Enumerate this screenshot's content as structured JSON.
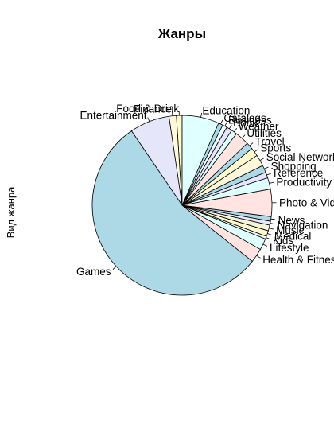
{
  "chart_data": {
    "type": "pie",
    "title": "Жанры",
    "ylabel": "Вид жанра",
    "xlabel": "",
    "start_angle_deg": 90,
    "direction": "counterclockwise",
    "slices": [
      {
        "label": "Food & Drink",
        "value": 1.0,
        "color": "#fffacd"
      },
      {
        "label": "Finance",
        "value": 1.3,
        "color": "#fff8dc"
      },
      {
        "label": "Entertainment",
        "value": 7.0,
        "color": "#e6e6fa"
      },
      {
        "label": "Games",
        "value": 53.5,
        "color": "#add8e6"
      },
      {
        "label": "Health & Fitness",
        "value": 2.5,
        "color": "#ffe4e1"
      },
      {
        "label": "Lifestyle",
        "value": 2.0,
        "color": "#e0ffff"
      },
      {
        "label": "Kids",
        "value": 0.5,
        "color": "#f0f8ff"
      },
      {
        "label": "Medical",
        "value": 1.0,
        "color": "#fffacd"
      },
      {
        "label": "Music",
        "value": 1.0,
        "color": "#f5f5dc"
      },
      {
        "label": "Navigation",
        "value": 0.7,
        "color": "#e6e6fa"
      },
      {
        "label": "News",
        "value": 0.8,
        "color": "#add8e6"
      },
      {
        "label": "Photo & Video",
        "value": 4.8,
        "color": "#ffe4e1"
      },
      {
        "label": "Productivity",
        "value": 2.0,
        "color": "#e0ffff"
      },
      {
        "label": "Reference",
        "value": 1.0,
        "color": "#e6e6fa"
      },
      {
        "label": "Shopping",
        "value": 1.3,
        "color": "#add8e6"
      },
      {
        "label": "Social Networking",
        "value": 2.0,
        "color": "#fff8dc"
      },
      {
        "label": "Sports",
        "value": 1.5,
        "color": "#fffacd"
      },
      {
        "label": "Travel",
        "value": 1.2,
        "color": "#add8e6"
      },
      {
        "label": "Utilities",
        "value": 2.5,
        "color": "#ffe4e1"
      },
      {
        "label": "Weather",
        "value": 1.0,
        "color": "#e0ffff"
      },
      {
        "label": "Book",
        "value": 1.0,
        "color": "#e6e6fa"
      },
      {
        "label": "Business",
        "value": 0.8,
        "color": "#f0f8ff"
      },
      {
        "label": "Catalogs",
        "value": 0.8,
        "color": "#add8e6"
      },
      {
        "label": "Education",
        "value": 6.5,
        "color": "#e0ffff"
      }
    ]
  }
}
